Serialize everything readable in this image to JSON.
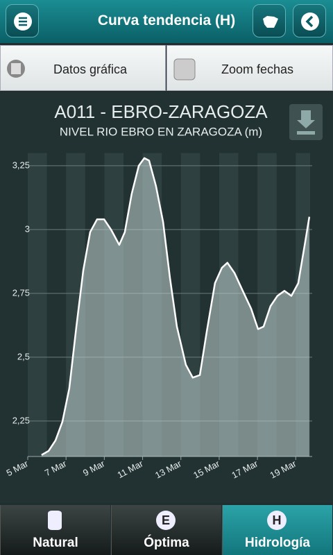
{
  "header": {
    "title": "Curva tendencia (H)"
  },
  "toolbar": {
    "data_button": "Datos gráfica",
    "zoom_button": "Zoom fechas"
  },
  "chart_data": {
    "type": "area",
    "title": "A011 - EBRO-ZARAGOZA",
    "subtitle": "NIVEL RIO EBRO EN ZARAGOZA (m)",
    "x": [
      5.72,
      6.09,
      6.45,
      6.81,
      7.17,
      7.54,
      7.9,
      8.26,
      8.62,
      8.99,
      9.35,
      9.78,
      10.07,
      10.43,
      10.8,
      11.09,
      11.34,
      11.7,
      12.07,
      12.43,
      12.79,
      13.26,
      13.62,
      13.99,
      14.35,
      14.78,
      15.14,
      15.43,
      15.8,
      16.23,
      16.67,
      17.03,
      17.32,
      17.68,
      18.04,
      18.41,
      18.77,
      19.13,
      19.49,
      19.71
    ],
    "values": [
      2.117,
      2.133,
      2.174,
      2.247,
      2.378,
      2.62,
      2.84,
      2.99,
      3.04,
      3.04,
      3.0,
      2.94,
      2.99,
      3.14,
      3.25,
      3.28,
      3.27,
      3.17,
      3.03,
      2.81,
      2.62,
      2.47,
      2.42,
      2.43,
      2.6,
      2.79,
      2.85,
      2.87,
      2.83,
      2.76,
      2.69,
      2.61,
      2.62,
      2.7,
      2.74,
      2.76,
      2.74,
      2.79,
      2.95,
      3.05
    ],
    "color": "#ffffff",
    "fill": "#c3d6d3",
    "xlim": [
      5,
      19.75
    ],
    "ylim": [
      2.111,
      3.3
    ],
    "xticks": [
      {
        "value": 5,
        "label": "5 Mar"
      },
      {
        "value": 7,
        "label": "7 Mar"
      },
      {
        "value": 9,
        "label": "9 Mar"
      },
      {
        "value": 11,
        "label": "11 Mar"
      },
      {
        "value": 13,
        "label": "13 Mar"
      },
      {
        "value": 15,
        "label": "15 Mar"
      },
      {
        "value": 17,
        "label": "17 Mar"
      },
      {
        "value": 19,
        "label": "19 Mar"
      }
    ],
    "yticks": [
      {
        "value": 2.25,
        "label": "2,25"
      },
      {
        "value": 2.5,
        "label": "2,5"
      },
      {
        "value": 2.75,
        "label": "2,75"
      },
      3,
      {
        "value": 3.25,
        "label": "3,25"
      }
    ],
    "grid": true
  },
  "tabs": [
    {
      "label": "Natural"
    },
    {
      "icon": "E",
      "label": "Óptima"
    },
    {
      "icon": "H",
      "label": "Hidrología",
      "active": true
    }
  ]
}
